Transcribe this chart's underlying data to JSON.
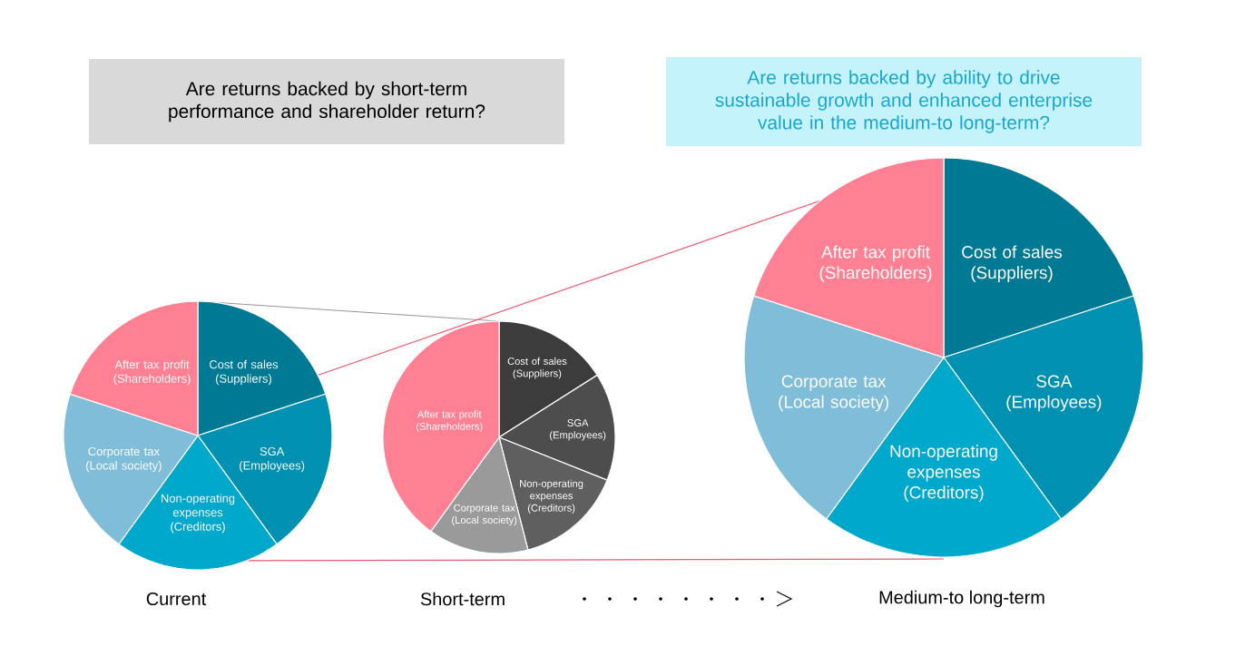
{
  "chart_data": [
    {
      "type": "pie",
      "xlabel": "Current",
      "categories": [
        "Cost of sales (Suppliers)",
        "SGA (Employees)",
        "Non-operating expenses (Creditors)",
        "Corporate tax (Local society)",
        "After tax profit (Shareholders)"
      ],
      "values": [
        20,
        20,
        20,
        20,
        20
      ],
      "colors": [
        "#007a94",
        "#0091b2",
        "#00a8cc",
        "#80bdd8",
        "#ff8093"
      ]
    },
    {
      "type": "pie",
      "title": "Are returns backed by short-term performance and shareholder return?",
      "xlabel": "Short-term",
      "categories": [
        "Cost of sales (Suppliers)",
        "SGA (Employees)",
        "Non-operating expenses (Creditors)",
        "Corporate tax (Local society)",
        "After tax profit (Shareholders)"
      ],
      "values": [
        16,
        15,
        15,
        14,
        40
      ],
      "colors": [
        "#3c3c3c",
        "#4d4d4d",
        "#5f5f5f",
        "#9a9a9a",
        "#ff8093"
      ]
    },
    {
      "type": "pie",
      "title": "Are returns backed by ability to drive sustainable growth and enhanced enterprise value in the medium-to long-term?",
      "xlabel": "Medium-to long-term",
      "categories": [
        "Cost of sales (Suppliers)",
        "SGA (Employees)",
        "Non-operating expenses (Creditors)",
        "Corporate tax (Local society)",
        "After tax profit (Shareholders)"
      ],
      "values": [
        20,
        20,
        20,
        20,
        20
      ],
      "colors": [
        "#007a94",
        "#0091b2",
        "#00a8cc",
        "#80bdd8",
        "#ff8093"
      ]
    }
  ]
}
